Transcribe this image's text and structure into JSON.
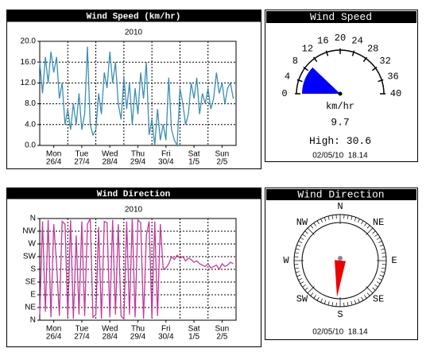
{
  "chart_data": [
    {
      "type": "line",
      "title": "Wind Speed (km/hr)",
      "subtitle": "2010",
      "color": "#3a8fb5",
      "grid": true,
      "x": [
        0,
        0.1,
        0.2,
        0.3,
        0.4,
        0.5,
        0.6,
        0.7,
        0.8,
        0.9,
        1,
        1.1,
        1.2,
        1.3,
        1.4,
        1.5,
        1.6,
        1.7,
        1.8,
        1.9,
        2,
        2.1,
        2.2,
        2.3,
        2.4,
        2.5,
        2.6,
        2.7,
        2.8,
        2.9,
        3,
        3.1,
        3.2,
        3.3,
        3.4,
        3.5,
        3.6,
        3.7,
        3.8,
        3.9,
        4,
        4.1,
        4.2,
        4.3,
        4.4,
        4.5,
        4.6,
        4.7,
        4.8,
        4.9,
        5,
        5.1,
        5.2,
        5.3,
        5.4,
        5.5,
        5.6,
        5.7,
        5.8,
        5.9,
        6,
        6.1,
        6.2,
        6.3,
        6.4,
        6.5,
        6.6,
        6.7,
        6.8,
        6.9
      ],
      "values": [
        16,
        10,
        17,
        12,
        18,
        14,
        17,
        9,
        12,
        4,
        7,
        3,
        8,
        4,
        10,
        3,
        6,
        19,
        4,
        2,
        3,
        10,
        6,
        14,
        11,
        18,
        12,
        16,
        8,
        5,
        13,
        7,
        12,
        4,
        11,
        6,
        14,
        9,
        16,
        2,
        5,
        0,
        7,
        1,
        4,
        1,
        13,
        3,
        1,
        0,
        11,
        8,
        4,
        6,
        12,
        9,
        13,
        6,
        10,
        8,
        11,
        7,
        9,
        14,
        10,
        12,
        8,
        11,
        12,
        9
      ],
      "xlim": [
        0,
        7
      ],
      "xticks": [
        {
          "value": 0.5,
          "label": [
            "Mon",
            "26/4"
          ]
        },
        {
          "value": 1.5,
          "label": [
            "Tue",
            "27/4"
          ]
        },
        {
          "value": 2.5,
          "label": [
            "Wed",
            "28/4"
          ]
        },
        {
          "value": 3.5,
          "label": [
            "Thu",
            "29/4"
          ]
        },
        {
          "value": 4.5,
          "label": [
            "Fri",
            "30/4"
          ]
        },
        {
          "value": 5.5,
          "label": [
            "Sat",
            "1/5"
          ]
        },
        {
          "value": 6.5,
          "label": [
            "Sun",
            "2/5"
          ]
        }
      ],
      "ylim": [
        0,
        20
      ],
      "yticks": [
        {
          "value": 0,
          "label": "0.0"
        },
        {
          "value": 4,
          "label": "4.0"
        },
        {
          "value": 8,
          "label": "8.0"
        },
        {
          "value": 12,
          "label": "12.0"
        },
        {
          "value": 16,
          "label": "16.0"
        },
        {
          "value": 20,
          "label": "20.0"
        }
      ]
    },
    {
      "type": "line",
      "title": "Wind Direction",
      "subtitle": "2010",
      "color": "#c2399b",
      "grid": true,
      "x": [
        0,
        0.1,
        0.2,
        0.3,
        0.4,
        0.5,
        0.6,
        0.7,
        0.8,
        0.9,
        1,
        1.1,
        1.2,
        1.3,
        1.4,
        1.5,
        1.6,
        1.7,
        1.8,
        1.9,
        2,
        2.1,
        2.2,
        2.3,
        2.4,
        2.5,
        2.6,
        2.7,
        2.8,
        2.9,
        3,
        3.1,
        3.2,
        3.3,
        3.4,
        3.5,
        3.6,
        3.7,
        3.8,
        3.9,
        4,
        4.1,
        4.2,
        4.3,
        4.4,
        4.5,
        4.6,
        4.7,
        4.8,
        4.9,
        5,
        5.1,
        5.2,
        5.3,
        5.4,
        5.5,
        5.6,
        5.7,
        5.8,
        5.9,
        6,
        6.1,
        6.2,
        6.3,
        6.4,
        6.5,
        6.6,
        6.7,
        6.8,
        6.9
      ],
      "values": [
        20,
        350,
        30,
        355,
        10,
        340,
        200,
        15,
        350,
        340,
        10,
        355,
        5,
        300,
        20,
        350,
        15,
        340,
        360,
        10,
        20,
        330,
        5,
        350,
        345,
        10,
        355,
        20,
        340,
        15,
        5,
        350,
        20,
        360,
        10,
        355,
        345,
        5,
        300,
        350,
        10,
        350,
        15,
        340,
        180,
        185,
        200,
        225,
        215,
        230,
        220,
        225,
        210,
        220,
        215,
        205,
        210,
        200,
        195,
        190,
        200,
        185,
        190,
        195,
        180,
        200,
        190,
        195,
        205,
        200
      ],
      "xlim": [
        0,
        7
      ],
      "xticks": [
        {
          "value": 0.5,
          "label": [
            "Mon",
            "26/4"
          ]
        },
        {
          "value": 1.5,
          "label": [
            "Tue",
            "27/4"
          ]
        },
        {
          "value": 2.5,
          "label": [
            "Wed",
            "28/4"
          ]
        },
        {
          "value": 3.5,
          "label": [
            "Thu",
            "29/4"
          ]
        },
        {
          "value": 4.5,
          "label": [
            "Fri",
            "30/4"
          ]
        },
        {
          "value": 5.5,
          "label": [
            "Sat",
            "1/5"
          ]
        },
        {
          "value": 6.5,
          "label": [
            "Sun",
            "2/5"
          ]
        }
      ],
      "ylim": [
        0,
        360
      ],
      "yticks": [
        {
          "value": 0,
          "label": "N"
        },
        {
          "value": 45,
          "label": "NE"
        },
        {
          "value": 90,
          "label": "E"
        },
        {
          "value": 135,
          "label": "SE"
        },
        {
          "value": 180,
          "label": "S"
        },
        {
          "value": 225,
          "label": "SW"
        },
        {
          "value": 270,
          "label": "W"
        },
        {
          "value": 315,
          "label": "NW"
        },
        {
          "value": 360,
          "label": "N"
        }
      ]
    },
    {
      "type": "gauge",
      "title": "Wind Speed",
      "lim": [
        0,
        40
      ],
      "ticks": [
        0,
        4,
        8,
        12,
        16,
        20,
        24,
        28,
        32,
        36,
        40
      ],
      "unit": "km/hr",
      "value": 9.7,
      "color": "#0000ff",
      "high": {
        "label": "High:",
        "value": 30.6
      },
      "timestamp": "02/05/10  18.14"
    },
    {
      "type": "compass",
      "title": "Wind Direction",
      "labels": [
        "N",
        "NE",
        "E",
        "SE",
        "S",
        "SW",
        "W",
        "NW"
      ],
      "value": 185,
      "color": "#ee0000",
      "timestamp": "02/05/10  18.14"
    }
  ]
}
